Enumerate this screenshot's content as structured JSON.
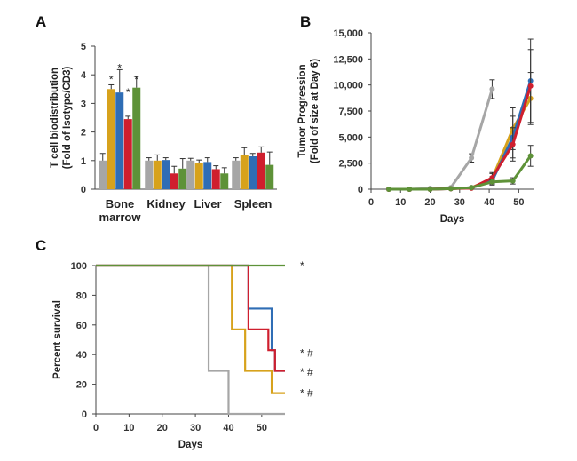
{
  "colors": {
    "gray": "#a6a6a6",
    "gold": "#d7a21c",
    "blue": "#2f6db5",
    "red": "#cf1f2e",
    "green": "#5e9238"
  },
  "chart_data": [
    {
      "panel": "A",
      "type": "bar",
      "ylabel": [
        "T cell biodistribution",
        "(Fold of Isotype/CD3)"
      ],
      "ylim": [
        0,
        5
      ],
      "yticks": [
        0,
        1,
        2,
        3,
        4,
        5
      ],
      "categories": [
        [
          "Bone",
          "marrow"
        ],
        [
          "Kidney"
        ],
        [
          "Liver"
        ],
        [
          "Spleen"
        ]
      ],
      "series": [
        {
          "color": "gray",
          "values": [
            1.0,
            1.0,
            1.0,
            1.0
          ],
          "errors": [
            0.25,
            0.1,
            0.08,
            0.1
          ]
        },
        {
          "color": "gold",
          "values": [
            3.5,
            1.0,
            0.9,
            1.2
          ],
          "errors": [
            0.15,
            0.2,
            0.12,
            0.25
          ]
        },
        {
          "color": "blue",
          "values": [
            3.38,
            1.02,
            0.95,
            1.15
          ],
          "errors": [
            0.8,
            0.08,
            0.15,
            0.1
          ]
        },
        {
          "color": "red",
          "values": [
            2.45,
            0.55,
            0.7,
            1.28
          ],
          "errors": [
            0.1,
            0.25,
            0.12,
            0.2
          ]
        },
        {
          "color": "green",
          "values": [
            3.55,
            0.72,
            0.55,
            0.85
          ],
          "errors": [
            0.4,
            0.35,
            0.2,
            0.45
          ]
        }
      ],
      "annotations": [
        {
          "text": "*",
          "category": 0,
          "series": 1,
          "y": 3.9
        },
        {
          "text": "*",
          "category": 0,
          "series": 2,
          "y": 4.3
        },
        {
          "text": "*",
          "category": 0,
          "series": 3,
          "y": 3.45
        },
        {
          "text": "*",
          "category": 0,
          "series": 4,
          "y": 3.9
        }
      ]
    },
    {
      "panel": "B",
      "type": "line",
      "xlabel": "Days",
      "ylabel": [
        "Tumor Progression",
        "(Fold of size at Day 6)"
      ],
      "xlim": [
        0,
        55
      ],
      "ylim": [
        0,
        15000
      ],
      "xticks": [
        0,
        10,
        20,
        30,
        40,
        50
      ],
      "yticks": [
        0,
        2500,
        5000,
        7500,
        10000,
        12500,
        15000
      ],
      "ytick_labels": [
        "0",
        "2,500",
        "5,000",
        "7,500",
        "10,000",
        "12,500",
        "15,000"
      ],
      "series": [
        {
          "color": "gray",
          "x": [
            6,
            13,
            20,
            27,
            34,
            41
          ],
          "y": [
            0,
            0,
            80,
            150,
            3000,
            9600
          ],
          "err": [
            0,
            0,
            0,
            50,
            400,
            900
          ]
        },
        {
          "color": "gold",
          "x": [
            6,
            13,
            20,
            27,
            34,
            41,
            48,
            54
          ],
          "y": [
            0,
            0,
            0,
            50,
            150,
            1000,
            5800,
            8700
          ],
          "err": [
            0,
            0,
            0,
            0,
            50,
            500,
            2000,
            2500
          ]
        },
        {
          "color": "blue",
          "x": [
            6,
            13,
            20,
            27,
            34,
            41,
            48,
            54
          ],
          "y": [
            0,
            0,
            0,
            50,
            150,
            800,
            5000,
            10400
          ],
          "err": [
            0,
            0,
            0,
            0,
            50,
            400,
            2000,
            4000
          ]
        },
        {
          "color": "red",
          "x": [
            6,
            13,
            20,
            27,
            34,
            41,
            48,
            54
          ],
          "y": [
            0,
            0,
            0,
            50,
            100,
            1100,
            4300,
            9900
          ],
          "err": [
            0,
            0,
            0,
            0,
            50,
            500,
            1600,
            3500
          ]
        },
        {
          "color": "green",
          "x": [
            6,
            13,
            20,
            27,
            34,
            41,
            48,
            54
          ],
          "y": [
            0,
            0,
            0,
            50,
            150,
            700,
            800,
            3200
          ],
          "err": [
            0,
            0,
            0,
            0,
            50,
            200,
            300,
            1000
          ]
        }
      ]
    },
    {
      "panel": "C",
      "type": "line",
      "xlabel": "Days",
      "ylabel": "Percent survival",
      "xlim": [
        0,
        57
      ],
      "ylim": [
        0,
        100
      ],
      "xticks": [
        0,
        10,
        20,
        30,
        40,
        50
      ],
      "yticks": [
        0,
        20,
        40,
        60,
        80,
        100
      ],
      "series": [
        {
          "color": "gray",
          "steps": [
            [
              0,
              100
            ],
            [
              34,
              100
            ],
            [
              34,
              29
            ],
            [
              40,
              29
            ],
            [
              40,
              0
            ],
            [
              57,
              0
            ]
          ]
        },
        {
          "color": "gold",
          "steps": [
            [
              0,
              100
            ],
            [
              41,
              100
            ],
            [
              41,
              57
            ],
            [
              45,
              57
            ],
            [
              45,
              29
            ],
            [
              53,
              29
            ],
            [
              53,
              14
            ],
            [
              57,
              14
            ]
          ]
        },
        {
          "color": "blue",
          "steps": [
            [
              0,
              100
            ],
            [
              46,
              100
            ],
            [
              46,
              71
            ],
            [
              53,
              71
            ],
            [
              53,
              43
            ],
            [
              54,
              43
            ],
            [
              54,
              29
            ],
            [
              57,
              29
            ]
          ]
        },
        {
          "color": "red",
          "steps": [
            [
              0,
              100
            ],
            [
              46,
              100
            ],
            [
              46,
              57
            ],
            [
              52,
              57
            ],
            [
              52,
              43
            ],
            [
              54,
              43
            ],
            [
              54,
              29
            ],
            [
              57,
              29
            ]
          ]
        },
        {
          "color": "green",
          "steps": [
            [
              0,
              100
            ],
            [
              57,
              100
            ]
          ]
        }
      ],
      "annotations": [
        {
          "text": "*",
          "y": 100
        },
        {
          "text": "* #",
          "y": 41
        },
        {
          "text": "* #",
          "y": 28
        },
        {
          "text": "* #",
          "y": 14
        }
      ]
    }
  ]
}
